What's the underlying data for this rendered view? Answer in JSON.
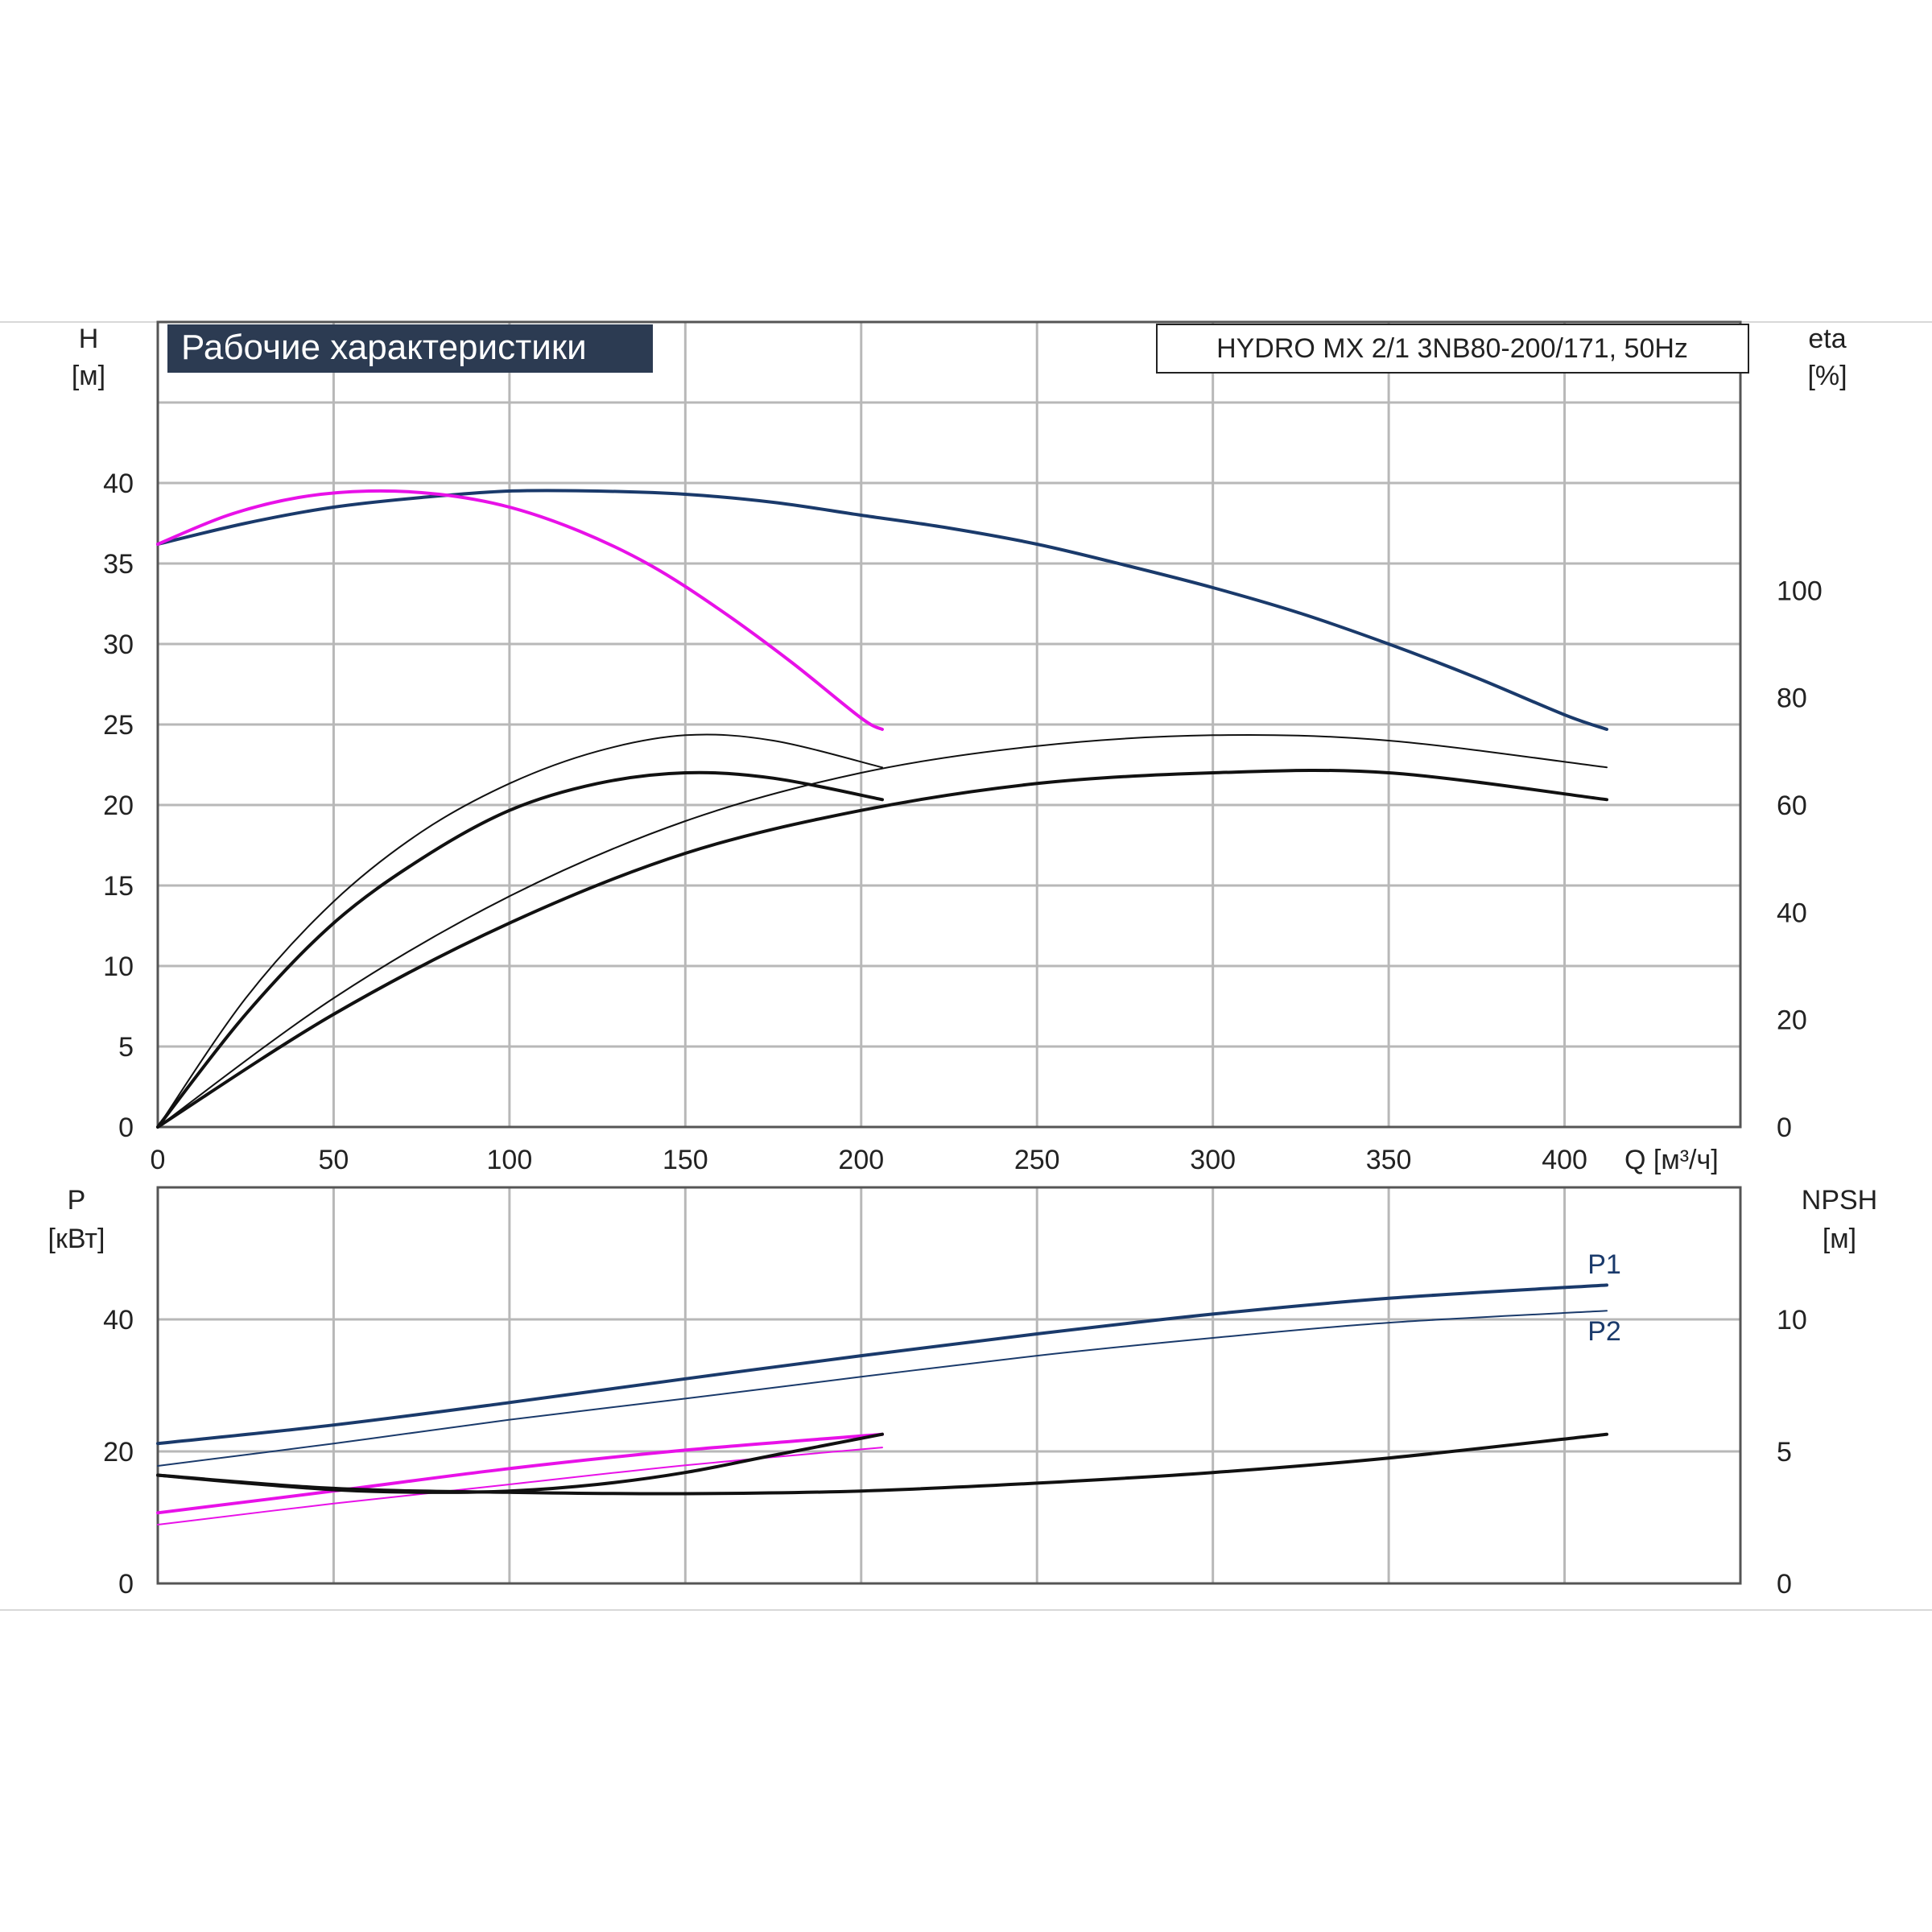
{
  "chart_data": [
    {
      "type": "line",
      "title": "Рабочие характеристики",
      "model_label": "HYDRO MX 2/1 3NB80-200/171, 50Hz",
      "xlabel": "Q [м³/ч]",
      "ylabel_left": [
        "H",
        "[м]"
      ],
      "ylabel_right": [
        "eta",
        "[%]"
      ],
      "xlim": [
        0,
        450
      ],
      "ylim_left": [
        0,
        50
      ],
      "ylim_right": [
        0,
        150
      ],
      "x_ticks": [
        "0",
        "50",
        "100",
        "150",
        "200",
        "250",
        "300",
        "350",
        "400"
      ],
      "y_ticks_left": [
        "0",
        "5",
        "10",
        "15",
        "20",
        "25",
        "30",
        "35",
        "40"
      ],
      "y_ticks_right": [
        "0",
        "20",
        "40",
        "60",
        "80",
        "100"
      ],
      "grid": true,
      "series": [
        {
          "axis": "left",
          "color": "#1a3a6b",
          "width": 4,
          "x": [
            0,
            25,
            50,
            75,
            100,
            125,
            150,
            175,
            200,
            225,
            250,
            275,
            300,
            325,
            350,
            375,
            400,
            412
          ],
          "y": [
            36.2,
            37.5,
            38.5,
            39.1,
            39.5,
            39.5,
            39.3,
            38.8,
            38.0,
            37.2,
            36.2,
            34.9,
            33.5,
            31.9,
            30.0,
            27.9,
            25.6,
            24.7
          ]
        },
        {
          "axis": "left",
          "color": "#e811e8",
          "width": 4,
          "x": [
            0,
            20,
            40,
            60,
            80,
            100,
            120,
            140,
            160,
            180,
            200,
            206
          ],
          "y": [
            36.2,
            38.0,
            39.1,
            39.5,
            39.3,
            38.5,
            37.0,
            34.9,
            32.1,
            28.9,
            25.4,
            24.7
          ]
        },
        {
          "axis": "right",
          "color": "#111111",
          "width": 2,
          "x": [
            0,
            25,
            50,
            75,
            100,
            125,
            150,
            175,
            206
          ],
          "y": [
            0,
            24,
            42,
            55,
            64,
            70,
            73,
            72,
            67
          ]
        },
        {
          "axis": "right",
          "color": "#111111",
          "width": 4,
          "x": [
            0,
            25,
            50,
            75,
            100,
            125,
            150,
            175,
            206
          ],
          "y": [
            0,
            21,
            38,
            50,
            59,
            64,
            66,
            65,
            61
          ]
        },
        {
          "axis": "right",
          "color": "#111111",
          "width": 2,
          "x": [
            0,
            50,
            100,
            150,
            200,
            250,
            300,
            350,
            412
          ],
          "y": [
            0,
            24,
            43,
            57,
            66,
            71,
            73,
            72,
            67
          ]
        },
        {
          "axis": "right",
          "color": "#111111",
          "width": 4,
          "x": [
            0,
            50,
            100,
            150,
            200,
            250,
            300,
            350,
            412
          ],
          "y": [
            0,
            21,
            38,
            51,
            59,
            64,
            66,
            66,
            61
          ]
        }
      ]
    },
    {
      "type": "line",
      "ylabel_left": [
        "P",
        "[кВт]"
      ],
      "ylabel_right": [
        "NPSH",
        "[м]"
      ],
      "xlim": [
        0,
        450
      ],
      "ylim_left": [
        0,
        60
      ],
      "ylim_right": [
        0,
        15
      ],
      "y_ticks_left": [
        "0",
        "20",
        "40"
      ],
      "y_ticks_right": [
        "0",
        "5",
        "10"
      ],
      "grid": true,
      "series_labels": [
        "P1",
        "P2"
      ],
      "series": [
        {
          "axis": "left",
          "color": "#1a3a6b",
          "width": 4,
          "x": [
            0,
            50,
            100,
            150,
            200,
            250,
            300,
            350,
            412
          ],
          "y": [
            21.2,
            24.0,
            27.4,
            31.0,
            34.5,
            37.8,
            40.8,
            43.2,
            45.2
          ]
        },
        {
          "axis": "left",
          "color": "#1a3a6b",
          "width": 2,
          "x": [
            0,
            50,
            100,
            150,
            200,
            250,
            300,
            350,
            412
          ],
          "y": [
            17.8,
            21.2,
            24.8,
            28.0,
            31.3,
            34.5,
            37.2,
            39.5,
            41.3
          ]
        },
        {
          "axis": "left",
          "color": "#e811e8",
          "width": 4,
          "x": [
            0,
            50,
            100,
            150,
            206
          ],
          "y": [
            10.7,
            14.0,
            17.4,
            20.2,
            22.6
          ]
        },
        {
          "axis": "left",
          "color": "#e811e8",
          "width": 2,
          "x": [
            0,
            50,
            100,
            150,
            206
          ],
          "y": [
            8.9,
            12.1,
            15.0,
            17.9,
            20.6
          ]
        },
        {
          "axis": "right",
          "color": "#111111",
          "width": 4,
          "x": [
            0,
            25,
            50,
            75,
            100,
            125,
            150,
            175,
            206
          ],
          "y": [
            4.1,
            3.8,
            3.55,
            3.45,
            3.5,
            3.75,
            4.2,
            4.85,
            5.65
          ]
        },
        {
          "axis": "right",
          "color": "#111111",
          "width": 4,
          "x": [
            0,
            50,
            100,
            150,
            200,
            250,
            300,
            350,
            412
          ],
          "y": [
            4.1,
            3.6,
            3.45,
            3.4,
            3.5,
            3.8,
            4.2,
            4.75,
            5.65
          ]
        }
      ]
    }
  ]
}
